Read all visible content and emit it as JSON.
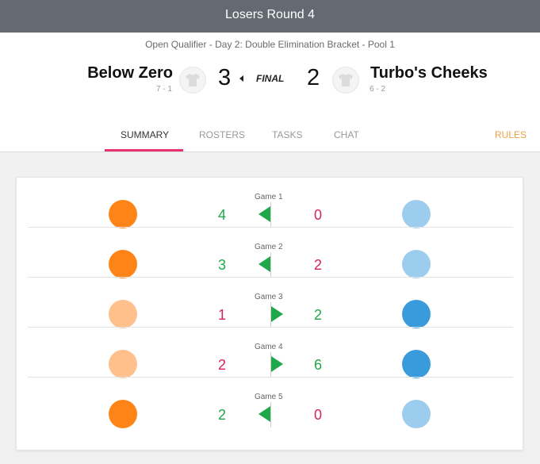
{
  "header": {
    "title": "Losers Round 4",
    "subtitle": "Open Qualifier - Day 2: Double Elimination Bracket - Pool 1"
  },
  "match": {
    "team_left": {
      "name": "Below Zero",
      "record": "7 - 1",
      "score": "3"
    },
    "team_right": {
      "name": "Turbo's Cheeks",
      "record": "6 - 2",
      "score": "2"
    },
    "status": "FINAL",
    "winner": "left"
  },
  "tabs": [
    {
      "label": "SUMMARY",
      "active": true
    },
    {
      "label": "ROSTERS",
      "active": false
    },
    {
      "label": "TASKS",
      "active": false
    },
    {
      "label": "CHAT",
      "active": false
    }
  ],
  "rules_label": "RULES",
  "colors": {
    "win": "#1fa84a",
    "loss": "#d4245f",
    "tab_accent": "#e8326d",
    "rules": "#f0a040",
    "left_team_strong": "#ff8418",
    "left_team_faded": "#ffc08c",
    "right_team_strong": "#3a9bdc",
    "right_team_faded": "#9dcdee"
  },
  "games": [
    {
      "label": "Game 1",
      "left_score": "4",
      "right_score": "0",
      "winner": "left"
    },
    {
      "label": "Game 2",
      "left_score": "3",
      "right_score": "2",
      "winner": "left"
    },
    {
      "label": "Game 3",
      "left_score": "1",
      "right_score": "2",
      "winner": "right"
    },
    {
      "label": "Game 4",
      "left_score": "2",
      "right_score": "6",
      "winner": "right"
    },
    {
      "label": "Game 5",
      "left_score": "2",
      "right_score": "0",
      "winner": "left"
    }
  ]
}
